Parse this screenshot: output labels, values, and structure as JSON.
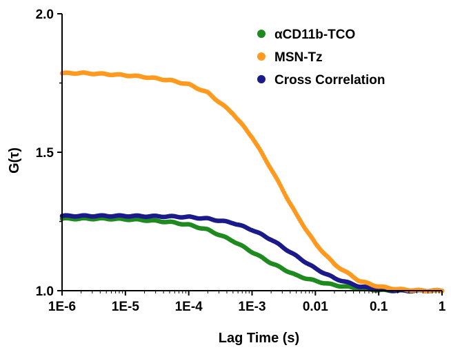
{
  "chart_data": {
    "type": "scatter",
    "x_scale": "log",
    "xlim": [
      1e-06,
      1
    ],
    "ylim": [
      1.0,
      2.0
    ],
    "xlabel": "Lag Time (s)",
    "ylabel": "G(τ)",
    "x_tick_labels": [
      "1E-6",
      "1E-5",
      "1E-4",
      "1E-3",
      "0.01",
      "0.1",
      "1"
    ],
    "y_tick_labels": [
      "1.0",
      "1.5",
      "2.0"
    ],
    "y_ticks": [
      1.0,
      1.5,
      2.0
    ],
    "legend_position": "top-right",
    "grid": false,
    "series": [
      {
        "name": "αCD11b-TCO",
        "color": "#1f8a1f",
        "points": [
          [
            1e-06,
            1.26
          ],
          [
            2e-06,
            1.26
          ],
          [
            5e-06,
            1.26
          ],
          [
            1e-05,
            1.258
          ],
          [
            2e-05,
            1.255
          ],
          [
            5e-05,
            1.248
          ],
          [
            0.0001,
            1.238
          ],
          [
            0.0002,
            1.22
          ],
          [
            0.0005,
            1.18
          ],
          [
            0.001,
            1.14
          ],
          [
            0.002,
            1.1
          ],
          [
            0.005,
            1.055
          ],
          [
            0.01,
            1.035
          ],
          [
            0.02,
            1.02
          ],
          [
            0.05,
            1.008
          ],
          [
            0.1,
            1.002
          ],
          [
            0.2,
            1.0
          ],
          [
            0.5,
            1.0
          ],
          [
            1,
            1.0
          ]
        ]
      },
      {
        "name": "MSN-Tz",
        "color": "#ff9a1f",
        "points": [
          [
            1e-06,
            1.785
          ],
          [
            2e-06,
            1.786
          ],
          [
            5e-06,
            1.782
          ],
          [
            1e-05,
            1.778
          ],
          [
            2e-05,
            1.772
          ],
          [
            5e-05,
            1.76
          ],
          [
            0.0001,
            1.745
          ],
          [
            0.0002,
            1.715
          ],
          [
            0.0005,
            1.64
          ],
          [
            0.001,
            1.555
          ],
          [
            0.002,
            1.44
          ],
          [
            0.005,
            1.275
          ],
          [
            0.01,
            1.17
          ],
          [
            0.02,
            1.095
          ],
          [
            0.05,
            1.035
          ],
          [
            0.1,
            1.015
          ],
          [
            0.2,
            1.005
          ],
          [
            0.5,
            1.0
          ],
          [
            1,
            1.0
          ]
        ]
      },
      {
        "name": "Cross Correlation",
        "color": "#1a1a8a",
        "points": [
          [
            1e-06,
            1.27
          ],
          [
            2e-06,
            1.27
          ],
          [
            5e-06,
            1.27
          ],
          [
            1e-05,
            1.27
          ],
          [
            2e-05,
            1.269
          ],
          [
            5e-05,
            1.268
          ],
          [
            0.0001,
            1.266
          ],
          [
            0.0002,
            1.26
          ],
          [
            0.0005,
            1.245
          ],
          [
            0.001,
            1.22
          ],
          [
            0.002,
            1.185
          ],
          [
            0.005,
            1.125
          ],
          [
            0.01,
            1.08
          ],
          [
            0.02,
            1.045
          ],
          [
            0.05,
            1.015
          ],
          [
            0.1,
            1.005
          ],
          [
            0.2,
            1.0
          ],
          [
            0.5,
            1.0
          ],
          [
            1,
            1.0
          ]
        ]
      }
    ]
  }
}
